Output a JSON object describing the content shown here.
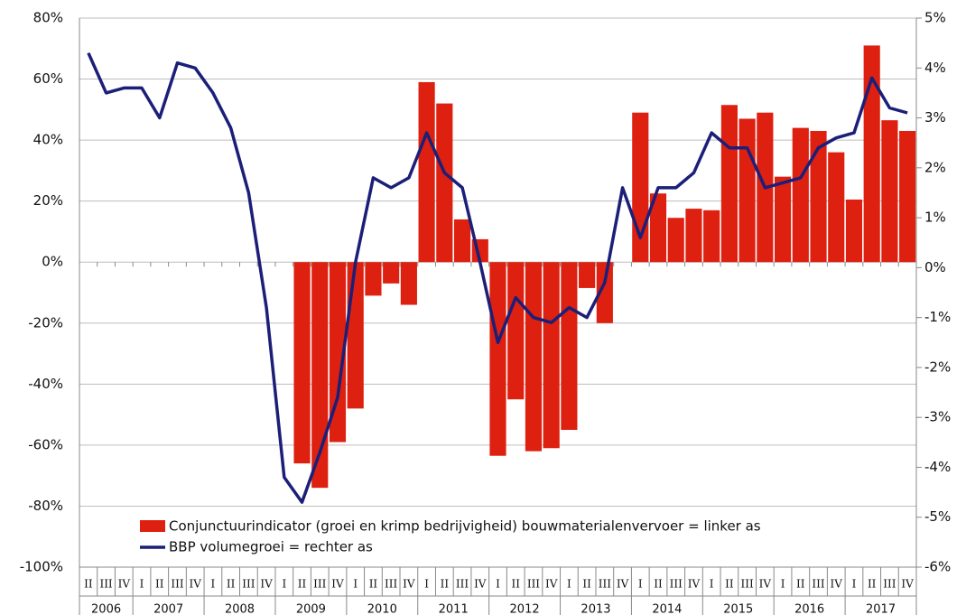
{
  "chart_data": {
    "type": "bar-line",
    "categories": [
      "II",
      "III",
      "IV",
      "I",
      "II",
      "III",
      "IV",
      "I",
      "II",
      "III",
      "IV",
      "I",
      "II",
      "III",
      "IV",
      "I",
      "II",
      "III",
      "IV",
      "I",
      "II",
      "III",
      "IV",
      "I",
      "II",
      "III",
      "IV",
      "I",
      "II",
      "III",
      "IV",
      "I",
      "II",
      "III",
      "IV",
      "I",
      "II",
      "III",
      "IV",
      "I",
      "II",
      "III",
      "IV",
      "I",
      "II",
      "III",
      "IV"
    ],
    "years": [
      "2006",
      "2007",
      "2008",
      "2009",
      "2010",
      "2011",
      "2012",
      "2013",
      "2014",
      "2015",
      "2016",
      "2017"
    ],
    "series": [
      {
        "name": "Conjunctuurindicator (groei en krimp bedrijvigheid) bouwmaterialenvervoer = linker as",
        "color": "#dd2010",
        "type": "bar",
        "axis": "y",
        "values": [
          null,
          null,
          null,
          null,
          null,
          null,
          null,
          null,
          null,
          null,
          null,
          null,
          -66,
          -74,
          -59,
          -48,
          -11,
          -7,
          -14,
          59,
          52,
          14,
          7.5,
          -63.5,
          -45,
          -62,
          -61,
          -55,
          -8.5,
          -20,
          null,
          49,
          22.5,
          14.5,
          17.5,
          17,
          51.5,
          47,
          49,
          28,
          44,
          43,
          36,
          20.5,
          71,
          46.5,
          43
        ]
      },
      {
        "name": "BBP volumegroei = rechter as",
        "color": "#1c1f78",
        "type": "line",
        "axis": "y2",
        "values": [
          4.3,
          3.5,
          3.6,
          3.6,
          3.0,
          4.1,
          4.0,
          3.5,
          2.8,
          1.5,
          -0.8,
          -4.2,
          -4.7,
          -3.7,
          -2.6,
          0.1,
          1.8,
          1.6,
          1.8,
          2.7,
          1.9,
          1.6,
          0.1,
          -1.5,
          -0.6,
          -1.0,
          -1.1,
          -0.8,
          -1.0,
          -0.3,
          1.6,
          0.6,
          1.6,
          1.6,
          1.9,
          2.7,
          2.4,
          2.4,
          1.6,
          1.7,
          1.8,
          2.4,
          2.6,
          2.7,
          3.8,
          3.2,
          3.1
        ]
      }
    ],
    "ylim": [
      -100,
      80
    ],
    "yticks": [
      {
        "value": -100,
        "label": "-100%"
      },
      {
        "value": -80,
        "label": "-80%"
      },
      {
        "value": -60,
        "label": "-60%"
      },
      {
        "value": -40,
        "label": "-40%"
      },
      {
        "value": -20,
        "label": "-20%"
      },
      {
        "value": 0,
        "label": "0%"
      },
      {
        "value": 20,
        "label": "20%"
      },
      {
        "value": 40,
        "label": "40%"
      },
      {
        "value": 60,
        "label": "60%"
      },
      {
        "value": 80,
        "label": "80%"
      }
    ],
    "y2lim": [
      -6,
      5
    ],
    "y2ticks": [
      {
        "value": -6,
        "label": "-6%"
      },
      {
        "value": -5,
        "label": "-5%"
      },
      {
        "value": -4,
        "label": "-4%"
      },
      {
        "value": -3,
        "label": "-3%"
      },
      {
        "value": -2,
        "label": "-2%"
      },
      {
        "value": -1,
        "label": "-1%"
      },
      {
        "value": 0,
        "label": "0%"
      },
      {
        "value": 1,
        "label": "1%"
      },
      {
        "value": 2,
        "label": "2%"
      },
      {
        "value": 3,
        "label": "3%"
      },
      {
        "value": 4,
        "label": "4%"
      },
      {
        "value": 5,
        "label": "5%"
      }
    ],
    "grid": true,
    "legend": "bottom-center"
  }
}
